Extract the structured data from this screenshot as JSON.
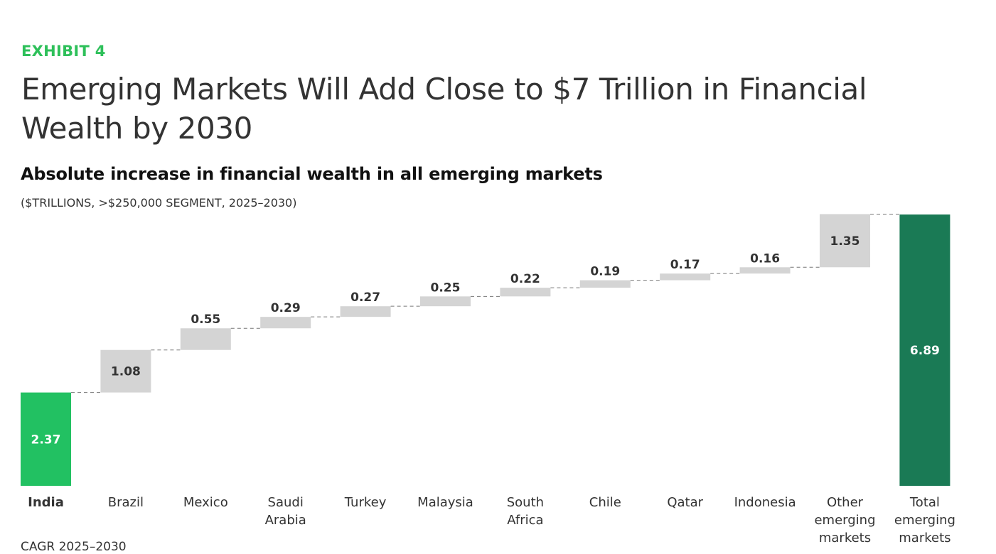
{
  "header": {
    "exhibit": "EXHIBIT 4",
    "title": "Emerging Markets Will Add Close to $7 Trillion in Financial Wealth by 2030",
    "subtitle": "Absolute increase in financial wealth in all emerging markets",
    "units": "($TRILLIONS, >$250,000 SEGMENT, 2025–2030)"
  },
  "footnote": "CAGR 2025–2030",
  "colors": {
    "start": "#22c162",
    "total": "#1a7a55",
    "increment": "#d4d4d4",
    "label_dark": "#333333",
    "label_light": "#ffffff",
    "connector": "#777777"
  },
  "chart_data": {
    "type": "waterfall",
    "categories": [
      [
        "India"
      ],
      [
        "Brazil"
      ],
      [
        "Mexico"
      ],
      [
        "Saudi",
        "Arabia"
      ],
      [
        "Turkey"
      ],
      [
        "Malaysia"
      ],
      [
        "South",
        "Africa"
      ],
      [
        "Chile"
      ],
      [
        "Qatar"
      ],
      [
        "Indonesia"
      ],
      [
        "Other",
        "emerging",
        "markets"
      ],
      [
        "Total",
        "emerging",
        "markets"
      ]
    ],
    "values": [
      2.37,
      1.08,
      0.55,
      0.29,
      0.27,
      0.25,
      0.22,
      0.19,
      0.17,
      0.16,
      1.35,
      6.89
    ],
    "labels": [
      "2.37",
      "1.08",
      "0.55",
      "0.29",
      "0.27",
      "0.25",
      "0.22",
      "0.19",
      "0.17",
      "0.16",
      "1.35",
      "6.89"
    ],
    "kinds": [
      "start",
      "increment",
      "increment",
      "increment",
      "increment",
      "increment",
      "increment",
      "increment",
      "increment",
      "increment",
      "increment",
      "total"
    ],
    "bold_categories": [
      0
    ],
    "ylim": [
      0,
      6.89
    ]
  }
}
